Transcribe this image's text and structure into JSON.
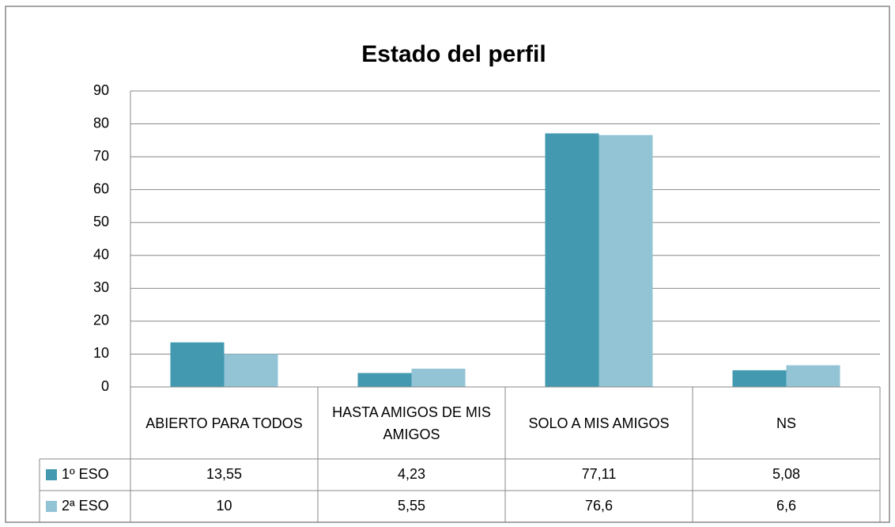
{
  "chart_data": {
    "type": "bar",
    "title": "Estado del perfil",
    "categories": [
      "ABIERTO PARA TODOS",
      "HASTA AMIGOS DE MIS AMIGOS",
      "SOLO A MIS AMIGOS",
      "NS"
    ],
    "series": [
      {
        "name": "1º ESO",
        "color": "#4299b0",
        "values": [
          13.55,
          4.23,
          77.11,
          5.08
        ],
        "value_labels": [
          "13,55",
          "4,23",
          "77,11",
          "5,08"
        ]
      },
      {
        "name": "2ª ESO",
        "color": "#93c4d6",
        "values": [
          10,
          5.55,
          76.6,
          6.6
        ],
        "value_labels": [
          "10",
          "5,55",
          "76,6",
          "6,6"
        ]
      }
    ],
    "ylim": [
      0,
      90
    ],
    "yticks": [
      0,
      10,
      20,
      30,
      40,
      50,
      60,
      70,
      80,
      90
    ],
    "grid": true
  }
}
